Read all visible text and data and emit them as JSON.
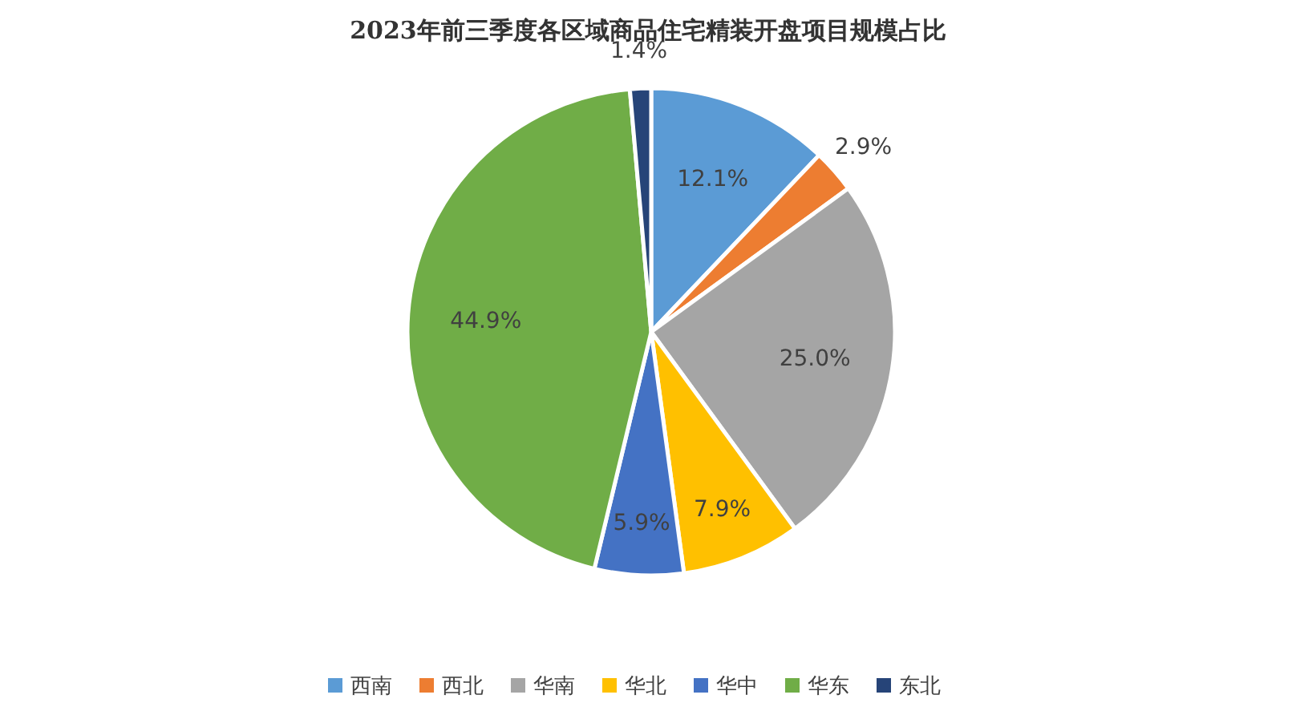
{
  "chart_data": {
    "type": "pie",
    "title": "2023年前三季度各区域商品住宅精装开盘项目规模占比",
    "categories": [
      "西南",
      "西北",
      "华南",
      "华北",
      "华中",
      "华东",
      "东北"
    ],
    "values": [
      12.1,
      2.9,
      25.0,
      7.9,
      5.9,
      44.9,
      1.4
    ],
    "colors": [
      "#5b9bd5",
      "#ed7d31",
      "#a5a5a5",
      "#ffc000",
      "#4472c4",
      "#70ad47",
      "#264478"
    ],
    "value_labels": [
      "12.1%",
      "2.9%",
      "25.0%",
      "7.9%",
      "5.9%",
      "44.9%",
      "1.4%"
    ],
    "legend": "bottom"
  }
}
